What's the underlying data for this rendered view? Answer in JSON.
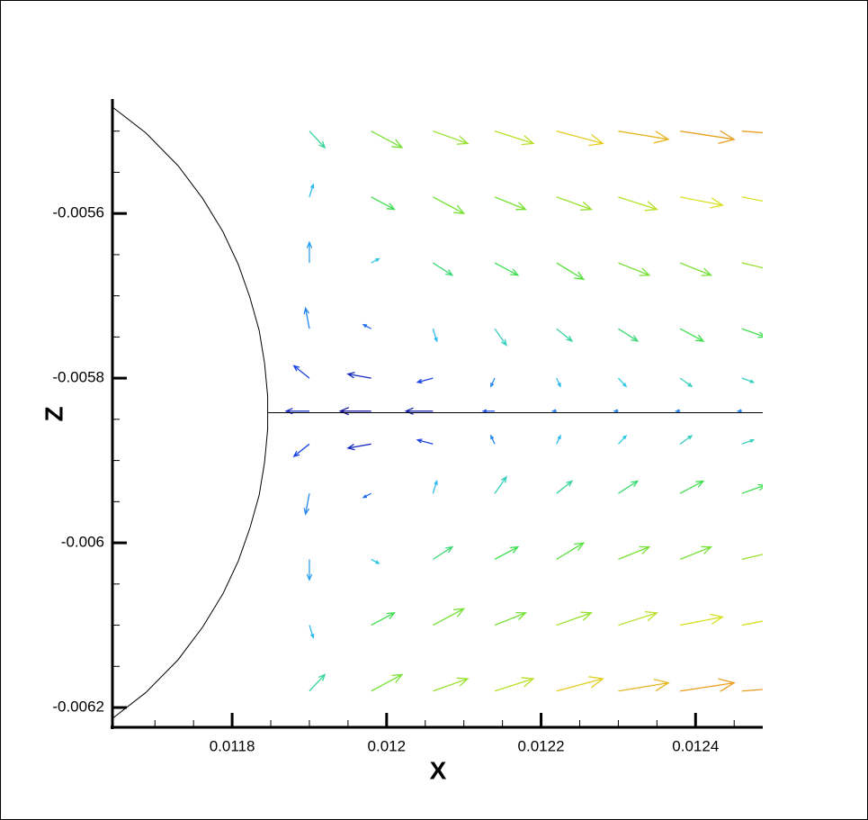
{
  "chart_data": {
    "type": "quiver",
    "xlabel": "X",
    "ylabel": "Z",
    "xlim": [
      0.011645,
      0.012487
    ],
    "ylim": [
      -0.006224,
      -0.005461
    ],
    "xticks": [
      0.0118,
      0.012,
      0.0122,
      0.0124
    ],
    "yticks": [
      -0.0056,
      -0.0058,
      -0.006,
      -0.0062
    ],
    "xminorticks": [
      0.0117,
      0.01175,
      0.01185,
      0.0119,
      0.01195,
      0.01205,
      0.0121,
      0.01215,
      0.01225,
      0.0123,
      0.01235,
      0.01245
    ],
    "yminorticks": [
      -0.0055,
      -0.00555,
      -0.00565,
      -0.0057,
      -0.00575,
      -0.00585,
      -0.0059,
      -0.00595,
      -0.00605,
      -0.0061,
      -0.00615
    ],
    "colormap": [
      "#1010a0",
      "#2050f0",
      "#30c8f0",
      "#40e040",
      "#e0e020",
      "#f07020"
    ],
    "clim": [
      -4e-05,
      8e-05
    ],
    "vectors": {
      "x": [
        0.0119,
        0.01198,
        0.01206,
        0.01214,
        0.01222,
        0.0123,
        0.01238,
        0.01246,
        0.0119,
        0.01198,
        0.01206,
        0.01214,
        0.01222,
        0.0123,
        0.01238,
        0.01246,
        0.0119,
        0.01198,
        0.01206,
        0.01214,
        0.01222,
        0.0123,
        0.01238,
        0.01246,
        0.0119,
        0.01198,
        0.01206,
        0.01214,
        0.01222,
        0.0123,
        0.01238,
        0.01246,
        0.0119,
        0.01198,
        0.01206,
        0.01214,
        0.01222,
        0.0123,
        0.01238,
        0.01246,
        0.0119,
        0.01198,
        0.01206,
        0.01214,
        0.01222,
        0.0123,
        0.01238,
        0.01246,
        0.0119,
        0.01198,
        0.01206,
        0.01214,
        0.01222,
        0.0123,
        0.01238,
        0.01246,
        0.0119,
        0.01198,
        0.01206,
        0.01214,
        0.01222,
        0.0123,
        0.01238,
        0.01246,
        0.0119,
        0.01198,
        0.01206,
        0.01214,
        0.01222,
        0.0123,
        0.01238,
        0.01246,
        0.0119,
        0.01198,
        0.01206,
        0.01214,
        0.01222,
        0.0123,
        0.01238,
        0.01246,
        0.0119,
        0.01198,
        0.01206,
        0.01214,
        0.01222,
        0.0123,
        0.01238,
        0.01246
      ],
      "y": [
        -0.0055,
        -0.0055,
        -0.0055,
        -0.0055,
        -0.0055,
        -0.0055,
        -0.0055,
        -0.0055,
        -0.00558,
        -0.00558,
        -0.00558,
        -0.00558,
        -0.00558,
        -0.00558,
        -0.00558,
        -0.00558,
        -0.00566,
        -0.00566,
        -0.00566,
        -0.00566,
        -0.00566,
        -0.00566,
        -0.00566,
        -0.00566,
        -0.00574,
        -0.00574,
        -0.00574,
        -0.00574,
        -0.00574,
        -0.00574,
        -0.00574,
        -0.00574,
        -0.0058,
        -0.0058,
        -0.0058,
        -0.0058,
        -0.0058,
        -0.0058,
        -0.0058,
        -0.0058,
        -0.00584,
        -0.00584,
        -0.00584,
        -0.00584,
        -0.00584,
        -0.00584,
        -0.00584,
        -0.00584,
        -0.00588,
        -0.00588,
        -0.00588,
        -0.00588,
        -0.00588,
        -0.00588,
        -0.00588,
        -0.00588,
        -0.00594,
        -0.00594,
        -0.00594,
        -0.00594,
        -0.00594,
        -0.00594,
        -0.00594,
        -0.00594,
        -0.00602,
        -0.00602,
        -0.00602,
        -0.00602,
        -0.00602,
        -0.00602,
        -0.00602,
        -0.00602,
        -0.0061,
        -0.0061,
        -0.0061,
        -0.0061,
        -0.0061,
        -0.0061,
        -0.0061,
        -0.0061,
        -0.00618,
        -0.00618,
        -0.00618,
        -0.00618,
        -0.00618,
        -0.00618,
        -0.00618,
        -0.00618
      ],
      "u": [
        2e-05,
        4e-05,
        4.5e-05,
        5e-05,
        6e-05,
        6.5e-05,
        7e-05,
        7e-05,
        5e-06,
        3e-05,
        4e-05,
        4e-05,
        4.5e-05,
        5e-05,
        5.5e-05,
        5.5e-05,
        0,
        1e-05,
        2.5e-05,
        3e-05,
        3.5e-05,
        4e-05,
        4e-05,
        4.5e-05,
        -5e-06,
        -1e-05,
        5e-06,
        1.5e-05,
        2e-05,
        2.5e-05,
        3e-05,
        3e-05,
        -2e-05,
        -3e-05,
        -2e-05,
        -5e-06,
        5e-06,
        1e-05,
        1.5e-05,
        1.5e-05,
        -3e-05,
        -4e-05,
        -3.5e-05,
        -1.5e-05,
        -5e-06,
        -5e-06,
        -5e-06,
        -5e-06,
        -2e-05,
        -3e-05,
        -2e-05,
        -5e-06,
        5e-06,
        1e-05,
        1.5e-05,
        1.5e-05,
        -5e-06,
        -1e-05,
        5e-06,
        1.5e-05,
        2e-05,
        2.5e-05,
        3e-05,
        3e-05,
        0,
        1e-05,
        2.5e-05,
        3e-05,
        3.5e-05,
        4e-05,
        4e-05,
        4.5e-05,
        5e-06,
        3e-05,
        4e-05,
        4e-05,
        4.5e-05,
        5e-05,
        5.5e-05,
        5.5e-05,
        2e-05,
        4e-05,
        4.5e-05,
        5e-05,
        6e-05,
        6.5e-05,
        7e-05,
        7e-05
      ],
      "v": [
        -2e-05,
        -2e-05,
        -1.5e-05,
        -1.5e-05,
        -1.5e-05,
        -1e-05,
        -1e-05,
        -5e-06,
        1.5e-05,
        -1.5e-05,
        -2e-05,
        -1.5e-05,
        -1.5e-05,
        -1.5e-05,
        -1e-05,
        -1e-05,
        2.5e-05,
        5e-06,
        -1.5e-05,
        -1.5e-05,
        -2e-05,
        -1.5e-05,
        -1.5e-05,
        -1e-05,
        2.5e-05,
        5e-06,
        -1.5e-05,
        -2e-05,
        -1.5e-05,
        -1.5e-05,
        -1.5e-05,
        -1e-05,
        1.5e-05,
        5e-06,
        -5e-06,
        -1e-05,
        -1e-05,
        -1e-05,
        -1e-05,
        -5e-06,
        0,
        0,
        0,
        0,
        0,
        0,
        0,
        0,
        -1.5e-05,
        -5e-06,
        5e-06,
        1e-05,
        1e-05,
        1e-05,
        1e-05,
        5e-06,
        -2.5e-05,
        -5e-06,
        1.5e-05,
        2e-05,
        1.5e-05,
        1.5e-05,
        1.5e-05,
        1e-05,
        -2.5e-05,
        -5e-06,
        1.5e-05,
        1.5e-05,
        2e-05,
        1.5e-05,
        1.5e-05,
        1e-05,
        -1.5e-05,
        1.5e-05,
        2e-05,
        1.5e-05,
        1.5e-05,
        1.5e-05,
        1e-05,
        1e-05,
        2e-05,
        2e-05,
        1.5e-05,
        1.5e-05,
        1.5e-05,
        1e-05,
        1e-05,
        5e-06
      ]
    },
    "lines": [
      {
        "color": "#000000",
        "x": [
          0.011633,
          0.011688,
          0.01173,
          0.011762,
          0.011788,
          0.011808,
          0.011823,
          0.011835,
          0.011842,
          0.011846,
          0.011846,
          0.011846,
          0.011842,
          0.011835,
          0.011823,
          0.011808,
          0.011788,
          0.011762,
          0.01173,
          0.011688,
          0.011633
        ],
        "y": [
          -0.005462,
          -0.005502,
          -0.005542,
          -0.005582,
          -0.005622,
          -0.005662,
          -0.005702,
          -0.005742,
          -0.005782,
          -0.005822,
          -0.005842,
          -0.005862,
          -0.005902,
          -0.005942,
          -0.005982,
          -0.006022,
          -0.006062,
          -0.006102,
          -0.006142,
          -0.006182,
          -0.006222
        ]
      },
      {
        "color": "#000000",
        "x": [
          0.011846,
          0.012487
        ],
        "y": [
          -0.005842,
          -0.005842
        ]
      }
    ]
  }
}
